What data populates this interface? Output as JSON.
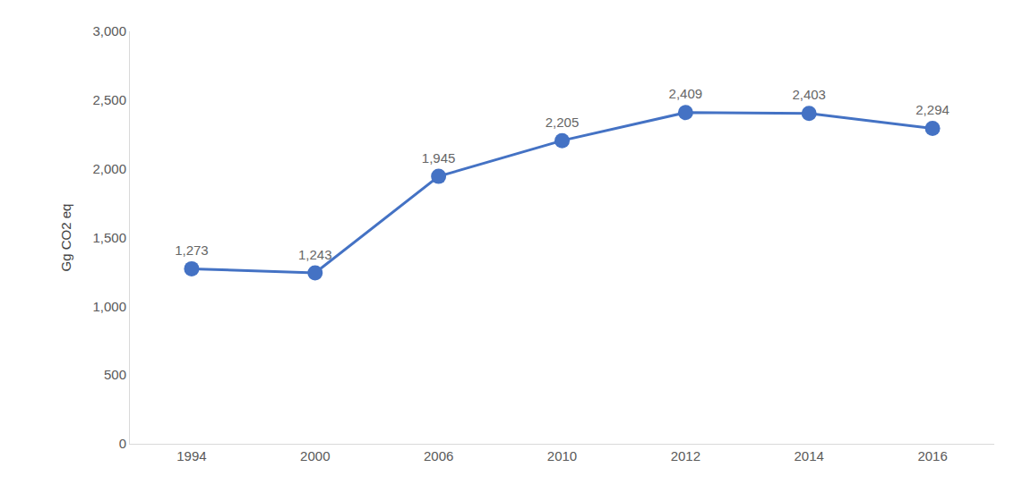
{
  "chart_data": {
    "type": "line",
    "y_label": "Gg CO2 eq",
    "categories": [
      "1994",
      "2000",
      "2006",
      "2010",
      "2012",
      "2014",
      "2016"
    ],
    "values": [
      1273,
      1243,
      1945,
      2205,
      2409,
      2403,
      2294
    ],
    "value_labels": [
      "1,273",
      "1,243",
      "1,945",
      "2,205",
      "2,409",
      "2,403",
      "2,294"
    ],
    "color": "#4472c4",
    "marker": "circle",
    "ylim": [
      0,
      3000
    ],
    "yticks": [
      0,
      500,
      {
        "value": 1000,
        "label": "1,000"
      },
      {
        "value": 1500,
        "label": "1,500"
      },
      {
        "value": 2000,
        "label": "2,000"
      },
      {
        "value": 2500,
        "label": "2,500"
      },
      {
        "value": 3000,
        "label": "3,000"
      }
    ],
    "grid": false,
    "data_labels": true
  }
}
